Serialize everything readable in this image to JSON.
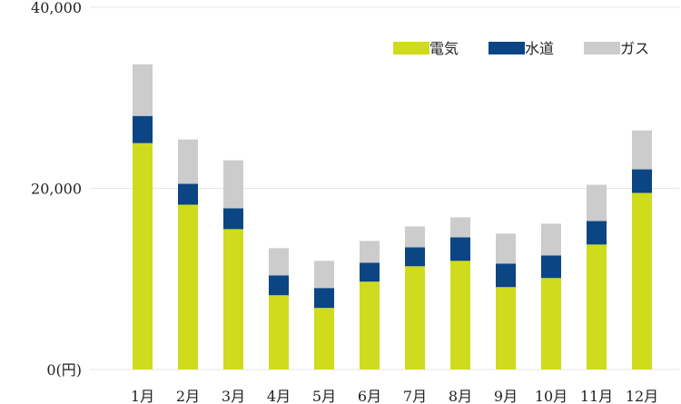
{
  "chart_data": {
    "type": "bar",
    "stacked": true,
    "categories": [
      "1月",
      "2月",
      "3月",
      "4月",
      "5月",
      "6月",
      "7月",
      "8月",
      "9月",
      "10月",
      "11月",
      "12月"
    ],
    "series": [
      {
        "name": "電気",
        "color": "#cfdb1d",
        "values": [
          25000,
          18200,
          15500,
          8200,
          6800,
          9700,
          11400,
          12000,
          9100,
          10100,
          13800,
          19500
        ]
      },
      {
        "name": "水道",
        "color": "#0b4584",
        "values": [
          3000,
          2300,
          2300,
          2200,
          2200,
          2100,
          2100,
          2600,
          2600,
          2500,
          2600,
          2600
        ]
      },
      {
        "name": "ガス",
        "color": "#cccccc",
        "values": [
          5700,
          4900,
          5300,
          3000,
          3000,
          2400,
          2300,
          2200,
          3300,
          3500,
          4000,
          4300
        ]
      }
    ],
    "y_ticks": [
      0,
      20000,
      40000
    ],
    "y_tick_labels": [
      "0",
      "20,000",
      "40,000"
    ],
    "y_unit": "(円)",
    "ylim": [
      0,
      40000
    ],
    "grid": true,
    "legend_position": "top-right"
  }
}
